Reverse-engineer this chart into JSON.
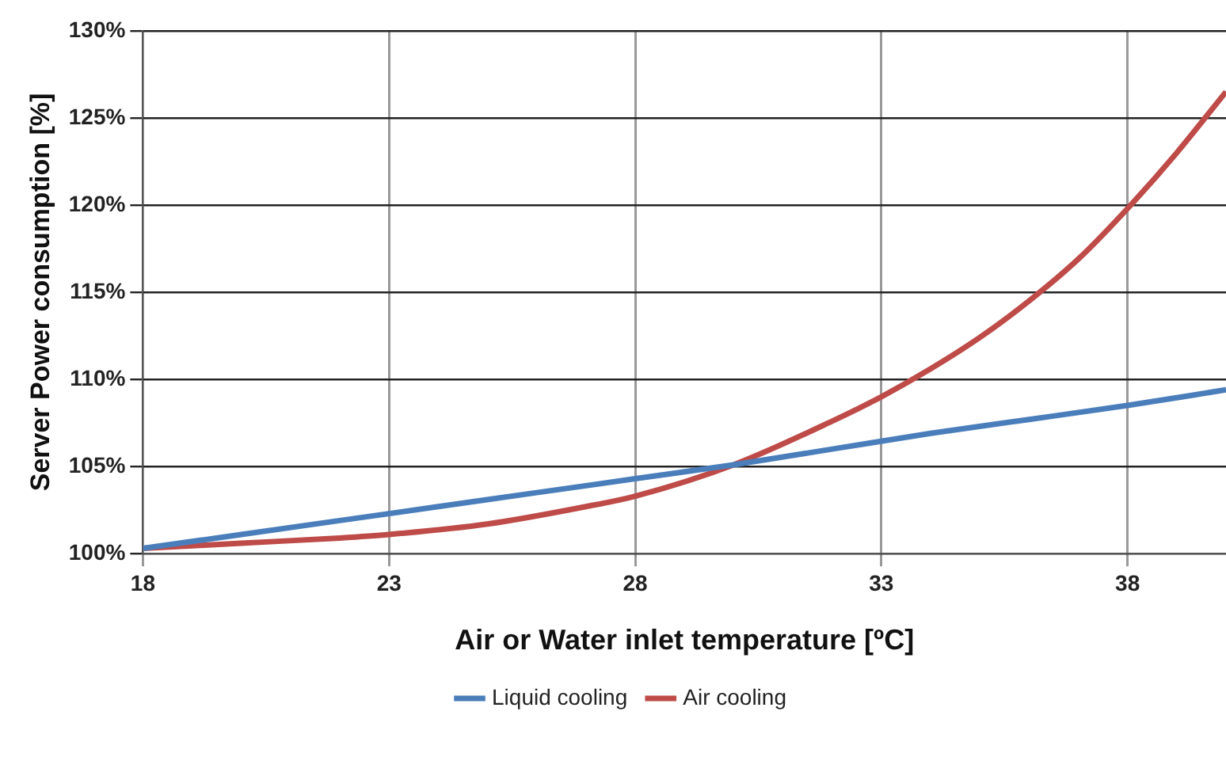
{
  "chart_data": {
    "type": "line",
    "xlabel": "Air or Water inlet temperature [ºC]",
    "ylabel": "Server Power consumption [%]",
    "xlim": [
      18,
      40
    ],
    "xticks": [
      18,
      23,
      28,
      33,
      38
    ],
    "ylim": [
      100,
      130
    ],
    "yticks": [
      {
        "value": 100,
        "label": "100%"
      },
      {
        "value": 105,
        "label": "105%"
      },
      {
        "value": 110,
        "label": "110%"
      },
      {
        "value": 115,
        "label": "115%"
      },
      {
        "value": 120,
        "label": "120%"
      },
      {
        "value": 125,
        "label": "125%"
      },
      {
        "value": 130,
        "label": "130%"
      }
    ],
    "grid": true,
    "legend": "bottom",
    "marker": "none",
    "line_style": "solid",
    "series": [
      {
        "name": "Liquid cooling",
        "color": "#4a7ebb",
        "x": [
          18,
          20,
          22,
          24,
          26,
          28,
          30,
          32,
          34,
          36,
          38,
          40
        ],
        "values": [
          100.3,
          101.1,
          101.9,
          102.7,
          103.5,
          104.3,
          105.1,
          106.0,
          106.9,
          107.7,
          108.5,
          109.4
        ]
      },
      {
        "name": "Air cooling",
        "color": "#be4b48",
        "x": [
          18,
          20,
          22,
          23,
          25,
          27,
          28,
          30,
          32,
          33,
          34,
          35,
          36,
          37,
          38,
          39,
          40
        ],
        "values": [
          100.3,
          100.6,
          100.9,
          101.1,
          101.7,
          102.7,
          103.3,
          105.1,
          107.6,
          109.0,
          110.6,
          112.4,
          114.5,
          116.9,
          119.8,
          123.0,
          126.5
        ]
      }
    ]
  }
}
